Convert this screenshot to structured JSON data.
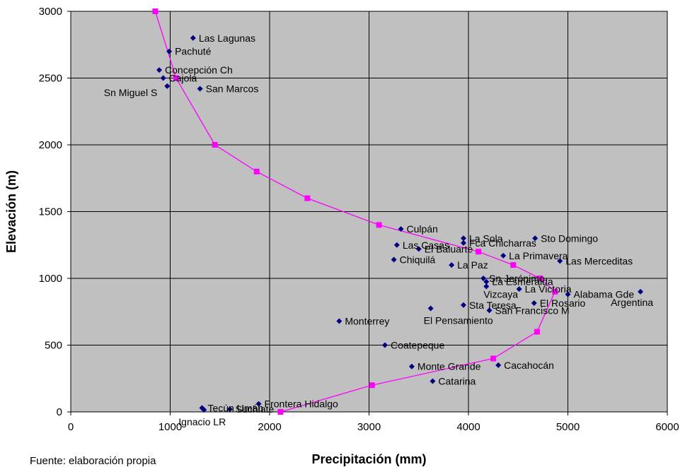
{
  "chart_data": {
    "type": "scatter",
    "xlabel": "Precipitación (mm)",
    "ylabel": "Elevación (m)",
    "xlim": [
      0,
      6000
    ],
    "ylim": [
      0,
      3000
    ],
    "xticks": [
      "0",
      "1000",
      "2000",
      "3000",
      "4000",
      "5000",
      "6000"
    ],
    "yticks": [
      "0",
      "500",
      "1000",
      "1500",
      "2000",
      "2500",
      "3000"
    ],
    "grid": true,
    "plot_background": "#c0c0c0",
    "colors": {
      "stations": "#000080",
      "curve": "#ff00ff"
    },
    "stations": [
      {
        "name": "Las Lagunas",
        "x": 1230,
        "y": 2800
      },
      {
        "name": "Pachuté",
        "x": 990,
        "y": 2700
      },
      {
        "name": "Concepción Ch",
        "x": 890,
        "y": 2560
      },
      {
        "name": "Cajola",
        "x": 930,
        "y": 2500
      },
      {
        "name": "Sn Miguel S",
        "x": 970,
        "y": 2440
      },
      {
        "name": "San Marcos",
        "x": 1300,
        "y": 2420
      },
      {
        "name": "Culpán",
        "x": 3320,
        "y": 1370
      },
      {
        "name": "La Sola",
        "x": 3950,
        "y": 1300
      },
      {
        "name": "Las Casas",
        "x": 3280,
        "y": 1250
      },
      {
        "name": "Fca Chicharras",
        "x": 3950,
        "y": 1265
      },
      {
        "name": "El Baluarte",
        "x": 3500,
        "y": 1220
      },
      {
        "name": "Sto Domingo",
        "x": 4670,
        "y": 1300
      },
      {
        "name": "La Primavera",
        "x": 4350,
        "y": 1170
      },
      {
        "name": "Chiquilá",
        "x": 3250,
        "y": 1140
      },
      {
        "name": "La Paz",
        "x": 3830,
        "y": 1100
      },
      {
        "name": "Las Merceditas",
        "x": 4920,
        "y": 1130
      },
      {
        "name": "Sn Jerónimo",
        "x": 4150,
        "y": 1000
      },
      {
        "name": "La Esmeralda",
        "x": 4180,
        "y": 975
      },
      {
        "name": "Vizcaya",
        "x": 4180,
        "y": 940
      },
      {
        "name": "La Victoria",
        "x": 4510,
        "y": 920
      },
      {
        "name": "Alabama Gde",
        "x": 5000,
        "y": 880
      },
      {
        "name": "Argentina",
        "x": 5730,
        "y": 900
      },
      {
        "name": "El Rosario",
        "x": 4660,
        "y": 815
      },
      {
        "name": "Sta Teresa",
        "x": 3950,
        "y": 800
      },
      {
        "name": "El Pensamiento",
        "x": 3620,
        "y": 775
      },
      {
        "name": "San Francisco M",
        "x": 4210,
        "y": 760
      },
      {
        "name": "Monterrey",
        "x": 2700,
        "y": 680
      },
      {
        "name": "Coatepeque",
        "x": 3160,
        "y": 500
      },
      {
        "name": "Monte Grande",
        "x": 3430,
        "y": 340
      },
      {
        "name": "Cacahocán",
        "x": 4300,
        "y": 350
      },
      {
        "name": "Catarina",
        "x": 3640,
        "y": 230
      },
      {
        "name": "Tecún Umán",
        "x": 1320,
        "y": 30
      },
      {
        "name": "Ignacio LR",
        "x": 1340,
        "y": 15
      },
      {
        "name": "Frontera Hidalgo",
        "x": 1890,
        "y": 60
      },
      {
        "name": "Suchiate",
        "x": 1600,
        "y": 20
      }
    ],
    "curve": [
      {
        "x": 850,
        "y": 3000
      },
      {
        "x": 1060,
        "y": 2500
      },
      {
        "x": 1450,
        "y": 2000
      },
      {
        "x": 1870,
        "y": 1800
      },
      {
        "x": 2380,
        "y": 1600
      },
      {
        "x": 3100,
        "y": 1400
      },
      {
        "x": 4100,
        "y": 1200
      },
      {
        "x": 4450,
        "y": 1100
      },
      {
        "x": 4720,
        "y": 1000
      },
      {
        "x": 4870,
        "y": 900
      },
      {
        "x": 4690,
        "y": 600
      },
      {
        "x": 4250,
        "y": 400
      },
      {
        "x": 3030,
        "y": 200
      },
      {
        "x": 2110,
        "y": 0
      }
    ]
  },
  "footnote": "Fuente: elaboración propia"
}
